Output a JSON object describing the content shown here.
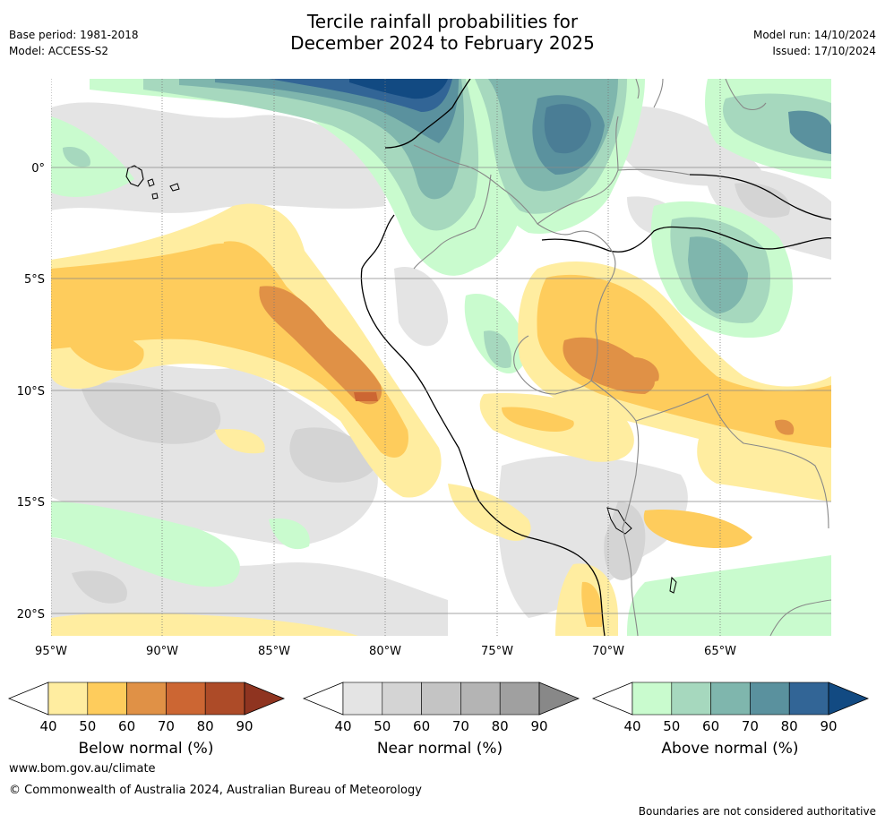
{
  "header": {
    "title_line1": "Tercile rainfall probabilities for",
    "title_line2": "December 2024 to February 2025",
    "base_period": "Base period: 1981-2018",
    "model": "Model: ACCESS-S2",
    "model_run": "Model run: 14/10/2024",
    "issued": "Issued: 17/10/2024"
  },
  "map": {
    "lon_ticks": [
      "95°W",
      "90°W",
      "85°W",
      "80°W",
      "75°W",
      "70°W",
      "65°W"
    ],
    "lat_ticks": [
      "0°",
      "5°S",
      "10°S",
      "15°S",
      "20°S"
    ]
  },
  "legends": [
    {
      "title": "Below normal (%)",
      "ticks": [
        "40",
        "50",
        "60",
        "70",
        "80",
        "90"
      ],
      "colors": [
        "#ffeda0",
        "#fecc5c",
        "#e09146",
        "#cc6633",
        "#ad4b28",
        "#8f3420"
      ]
    },
    {
      "title": "Near normal (%)",
      "ticks": [
        "40",
        "50",
        "60",
        "70",
        "80",
        "90"
      ],
      "colors": [
        "#e4e4e4",
        "#d4d4d4",
        "#c4c4c4",
        "#b4b4b4",
        "#a0a0a0",
        "#888888"
      ]
    },
    {
      "title": "Above normal (%)",
      "ticks": [
        "40",
        "50",
        "60",
        "70",
        "80",
        "90"
      ],
      "colors": [
        "#c9fbce",
        "#a6d8be",
        "#7fb6ad",
        "#5a919e",
        "#326596",
        "#124a82"
      ]
    }
  ],
  "footer": {
    "website": "www.bom.gov.au/climate",
    "copyright": "© Commonwealth of Australia 2024, Australian Bureau of Meteorology",
    "disclaimer": "Boundaries are not considered authoritative"
  }
}
